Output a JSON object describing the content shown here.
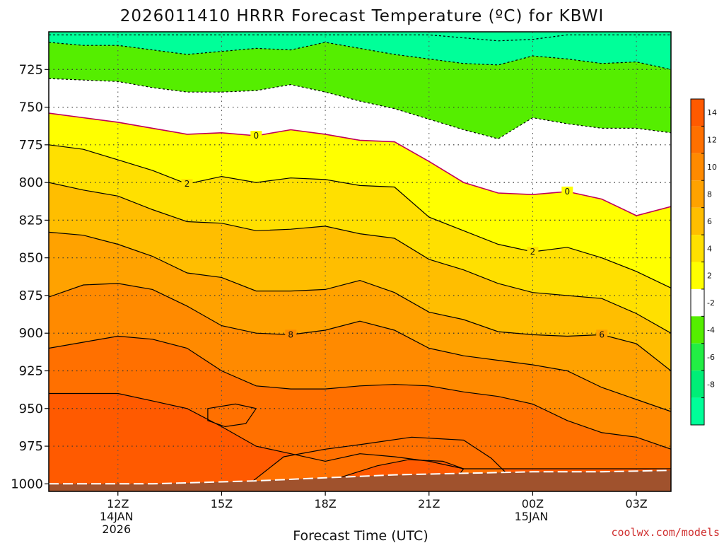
{
  "chart_data": {
    "type": "contour",
    "title": "2026011410 HRRR Forecast Temperature (ºC) for KBWI",
    "xlabel": "Forecast Time (UTC)",
    "ylabel": "",
    "credit": "coolwx.com/models",
    "y_axis": {
      "unit": "hPa",
      "inverted": true,
      "ylim": [
        700,
        1005
      ],
      "ticks": [
        725,
        750,
        775,
        800,
        825,
        850,
        875,
        900,
        925,
        950,
        975,
        1000
      ],
      "grid": true
    },
    "x_axis": {
      "ticks": [
        {
          "hour": 12,
          "label": "12Z",
          "sub": [
            "14JAN",
            "2026"
          ]
        },
        {
          "hour": 15,
          "label": "15Z",
          "sub": []
        },
        {
          "hour": 18,
          "label": "18Z",
          "sub": []
        },
        {
          "hour": 21,
          "label": "21Z",
          "sub": []
        },
        {
          "hour": 24,
          "label": "00Z",
          "sub": [
            "15JAN"
          ]
        },
        {
          "hour": 27,
          "label": "03Z",
          "sub": []
        }
      ],
      "xlim": [
        10,
        28
      ],
      "grid": true
    },
    "colorbar": {
      "labels": [
        "14",
        "12",
        "10",
        "8",
        "6",
        "4",
        "2",
        "-2",
        "-4",
        "-6",
        "-8"
      ],
      "bins": [
        {
          "range": [
            14,
            16
          ],
          "color": "#ff5a00"
        },
        {
          "range": [
            12,
            14
          ],
          "color": "#ff7000"
        },
        {
          "range": [
            10,
            12
          ],
          "color": "#ff8a00"
        },
        {
          "range": [
            8,
            10
          ],
          "color": "#ffa200"
        },
        {
          "range": [
            6,
            8
          ],
          "color": "#ffbe00"
        },
        {
          "range": [
            4,
            6
          ],
          "color": "#ffe000"
        },
        {
          "range": [
            2,
            4
          ],
          "color": "#ffff00"
        },
        {
          "range": [
            -2,
            2
          ],
          "color": "#ffffff"
        },
        {
          "range": [
            -4,
            -2
          ],
          "color": "#55ee00"
        },
        {
          "range": [
            -6,
            -4
          ],
          "color": "#22ee44"
        },
        {
          "range": [
            -8,
            -6
          ],
          "color": "#00ee77"
        },
        {
          "range": [
            -10,
            -8
          ],
          "color": "#00ff99"
        }
      ]
    },
    "ground_color": "#a0522d",
    "x_nodes": [
      10,
      11,
      12,
      13,
      14,
      15,
      16,
      17,
      18,
      19,
      20,
      21,
      22,
      23,
      24,
      25,
      26,
      27,
      28
    ],
    "contours": [
      {
        "level": -6,
        "fill": "#00ff99",
        "line": "dashed",
        "p": [
          702,
          702,
          702,
          702,
          702,
          702,
          702,
          702,
          702,
          702,
          702,
          702,
          704,
          706,
          705,
          702,
          702,
          702,
          702
        ]
      },
      {
        "level": -4,
        "fill": "#55ee00",
        "line": "dashed",
        "p": [
          707,
          709,
          709,
          712,
          715,
          713,
          711,
          712,
          707,
          711,
          715,
          718,
          721,
          722,
          716,
          718,
          721,
          720,
          725
        ]
      },
      {
        "level": -2,
        "fill": "#ffffff",
        "line": "dashed",
        "p": [
          731,
          732,
          733,
          737,
          740,
          740,
          739,
          735,
          740,
          746,
          751,
          758,
          765,
          771,
          757,
          761,
          764,
          764,
          767
        ]
      },
      {
        "level": 0,
        "fill": "#ffff00",
        "line": "solid",
        "color": "#c0005a",
        "labels": [
          16,
          25
        ],
        "p": [
          754,
          757,
          760,
          764,
          768,
          767,
          769,
          765,
          768,
          772,
          773,
          786,
          800,
          807,
          808,
          806,
          811,
          822,
          816
        ]
      },
      {
        "level": 2,
        "fill": "#ffe000",
        "line": "solid",
        "labels": [
          14,
          24
        ],
        "p": [
          775,
          778,
          785,
          792,
          801,
          796,
          800,
          797,
          798,
          802,
          803,
          823,
          832,
          841,
          846,
          843,
          850,
          859,
          870
        ]
      },
      {
        "level": 4,
        "fill": "#ffbe00",
        "line": "solid",
        "p": [
          800,
          805,
          809,
          818,
          826,
          827,
          832,
          831,
          829,
          834,
          837,
          851,
          858,
          867,
          873,
          875,
          877,
          887,
          900
        ]
      },
      {
        "level": 6,
        "fill": "#ffa200",
        "line": "solid",
        "labels": [
          26
        ],
        "p": [
          833,
          835,
          841,
          849,
          860,
          863,
          872,
          872,
          871,
          865,
          873,
          886,
          891,
          899,
          901,
          902,
          901,
          907,
          925
        ]
      },
      {
        "level": 8,
        "fill": "#ff8a00",
        "line": "solid",
        "labels": [
          17
        ],
        "p": [
          876,
          868,
          867,
          871,
          882,
          895,
          900,
          901,
          898,
          892,
          898,
          910,
          915,
          918,
          921,
          925,
          936,
          944,
          952
        ]
      },
      {
        "level": 10,
        "fill": "#ff7000",
        "line": "solid",
        "p": [
          910,
          906,
          902,
          904,
          910,
          925,
          935,
          937,
          937,
          935,
          934,
          935,
          939,
          942,
          947,
          958,
          966,
          969,
          977
        ]
      },
      {
        "level": 12,
        "fill": "#ff5a00",
        "line": "solid",
        "p": [
          940,
          940,
          940,
          945,
          950,
          962,
          975,
          980,
          985,
          980,
          982,
          985,
          990,
          990,
          990,
          990,
          990,
          990,
          990
        ]
      }
    ],
    "closed_contours": [
      {
        "level": 12,
        "fill": "#ff7000",
        "pts": [
          [
            14.6,
            950
          ],
          [
            15.4,
            947
          ],
          [
            16.0,
            950
          ],
          [
            15.7,
            960
          ],
          [
            15.1,
            962
          ],
          [
            14.6,
            958
          ]
        ]
      },
      {
        "level": 12,
        "fill": "#ff7000",
        "pts": [
          [
            15.8,
            1000
          ],
          [
            16.8,
            982
          ],
          [
            18.0,
            977
          ],
          [
            19.0,
            974
          ],
          [
            20.5,
            969
          ],
          [
            22.0,
            971
          ],
          [
            22.8,
            983
          ],
          [
            23.2,
            992
          ],
          [
            23.4,
            1000
          ]
        ]
      },
      {
        "level": 14,
        "fill": "#ff5a00",
        "pts": [
          [
            18.4,
            996
          ],
          [
            19.5,
            988
          ],
          [
            20.4,
            984
          ],
          [
            21.4,
            985
          ],
          [
            22.0,
            990
          ],
          [
            21.8,
            996
          ]
        ]
      }
    ],
    "ground_surface": [
      [
        10,
        1000
      ],
      [
        13,
        1000
      ],
      [
        16,
        998
      ],
      [
        18,
        996
      ],
      [
        20,
        994
      ],
      [
        22,
        993
      ],
      [
        24,
        992
      ],
      [
        26,
        992
      ],
      [
        28,
        991
      ]
    ]
  }
}
